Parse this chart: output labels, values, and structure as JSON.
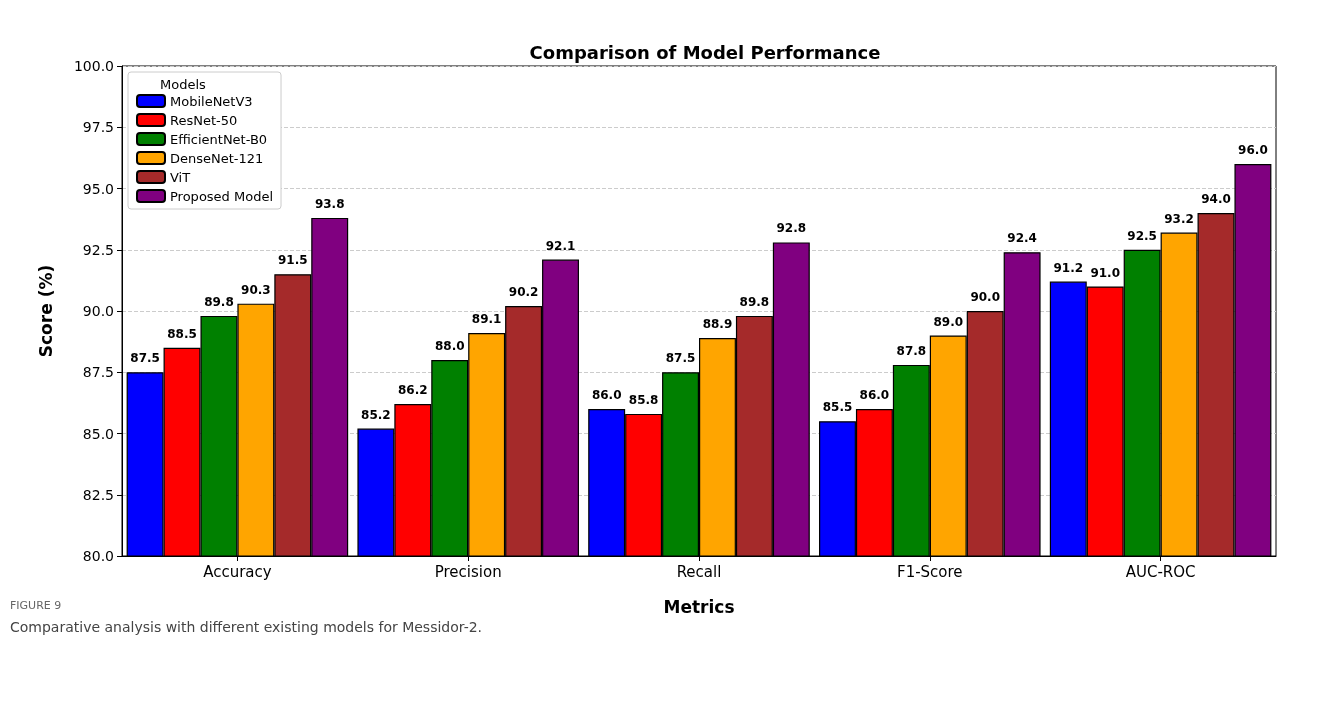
{
  "chart_data": {
    "type": "bar",
    "title": "Comparison of Model Performance",
    "xlabel": "Metrics",
    "ylabel": "Score (%)",
    "legend_title": "Models",
    "annotations": [
      "FIGURE 9",
      "Comparative analysis with different existing models for Messidor-2."
    ],
    "categories": [
      "Accuracy",
      "Precision",
      "Recall",
      "F1-Score",
      "AUC-ROC"
    ],
    "series": [
      {
        "name": "MobileNetV3",
        "color": "#0000ff",
        "values": [
          87.5,
          85.2,
          86.0,
          85.5,
          91.2
        ],
        "value_labels": [
          "87.5",
          "85.2",
          "86.0",
          "85.5",
          "91.2"
        ]
      },
      {
        "name": "ResNet-50",
        "color": "#ff0000",
        "values": [
          88.5,
          86.2,
          85.8,
          86.0,
          91.0
        ],
        "value_labels": [
          "88.5",
          "86.2",
          "85.8",
          "86.0",
          "91.0"
        ]
      },
      {
        "name": "EfficientNet-B0",
        "color": "#008000",
        "values": [
          89.8,
          88.0,
          87.5,
          87.8,
          92.5
        ],
        "value_labels": [
          "89.8",
          "88.0",
          "87.5",
          "87.8",
          "92.5"
        ]
      },
      {
        "name": "DenseNet-121",
        "color": "#ffa500",
        "values": [
          90.3,
          89.1,
          88.9,
          89.0,
          93.2
        ],
        "value_labels": [
          "90.3",
          "89.1",
          "88.9",
          "89.0",
          "93.2"
        ]
      },
      {
        "name": "ViT",
        "color": "#a52a2a",
        "values": [
          91.5,
          90.2,
          89.8,
          90.0,
          94.0
        ],
        "value_labels": [
          "91.5",
          "90.2",
          "89.8",
          "90.0",
          "94.0"
        ]
      },
      {
        "name": "Proposed Model",
        "color": "#800080",
        "values": [
          93.8,
          92.1,
          92.8,
          92.4,
          96.0
        ],
        "value_labels": [
          "93.8",
          "92.1",
          "92.8",
          "92.4",
          "96.0"
        ]
      }
    ],
    "ylim": [
      80,
      100
    ],
    "yticks": [
      {
        "value": 80,
        "label": "80.0"
      },
      {
        "value": 82.5,
        "label": "82.5"
      },
      {
        "value": 85,
        "label": "85.0"
      },
      {
        "value": 87.5,
        "label": "87.5"
      },
      {
        "value": 90,
        "label": "90.0"
      },
      {
        "value": 92.5,
        "label": "92.5"
      },
      {
        "value": 95,
        "label": "95.0"
      },
      {
        "value": 97.5,
        "label": "97.5"
      },
      {
        "value": 100,
        "label": "100.0"
      }
    ],
    "grid": "y",
    "legend": "top left"
  }
}
